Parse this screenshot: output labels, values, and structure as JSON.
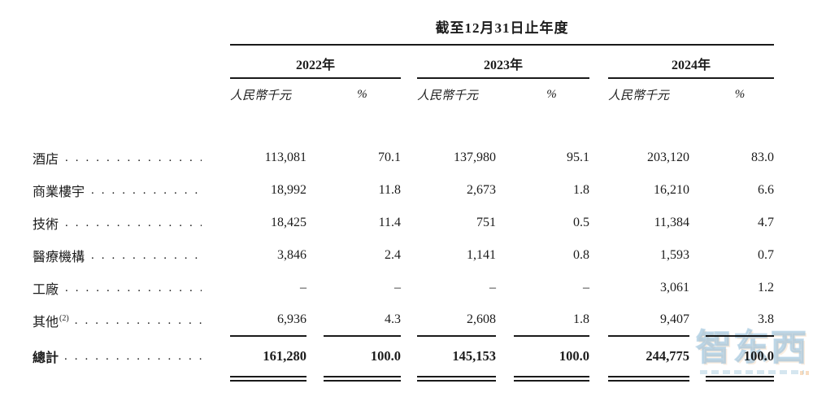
{
  "page": {
    "background": "#ffffff",
    "text_color": "#1c1c1c",
    "rule_color": "#1a1a1a"
  },
  "table": {
    "title": "截至12月31日止年度",
    "year_columns": [
      {
        "label": "2022年"
      },
      {
        "label": "2023年"
      },
      {
        "label": "2024年"
      }
    ],
    "subheaders": {
      "amount": "人民幣千元",
      "percent": "%"
    },
    "rows": [
      {
        "label": "酒店",
        "note_ref": "",
        "values": [
          "113,081",
          "70.1",
          "137,980",
          "95.1",
          "203,120",
          "83.0"
        ]
      },
      {
        "label": "商業樓宇",
        "note_ref": "",
        "values": [
          "18,992",
          "11.8",
          "2,673",
          "1.8",
          "16,210",
          "6.6"
        ]
      },
      {
        "label": "技術",
        "note_ref": "",
        "values": [
          "18,425",
          "11.4",
          "751",
          "0.5",
          "11,384",
          "4.7"
        ]
      },
      {
        "label": "醫療機構",
        "note_ref": "",
        "values": [
          "3,846",
          "2.4",
          "1,141",
          "0.8",
          "1,593",
          "0.7"
        ]
      },
      {
        "label": "工廠",
        "note_ref": "",
        "values": [
          "–",
          "–",
          "–",
          "–",
          "3,061",
          "1.2"
        ]
      },
      {
        "label": "其他",
        "note_ref": "(2)",
        "values": [
          "6,936",
          "4.3",
          "2,608",
          "1.8",
          "9,407",
          "3.8"
        ]
      }
    ],
    "total": {
      "label": "總計",
      "values": [
        "161,280",
        "100.0",
        "145,153",
        "100.0",
        "244,775",
        "100.0"
      ]
    }
  },
  "watermark": {
    "text": "智东西",
    "blue": "#9cc6de",
    "orange": "#f3c192"
  }
}
